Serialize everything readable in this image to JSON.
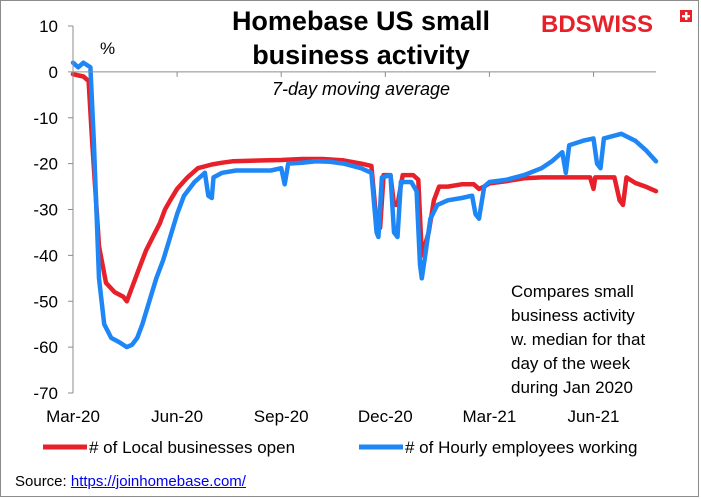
{
  "chart_data": {
    "type": "line",
    "title_lines": [
      "Homebase US small",
      "business activity"
    ],
    "subtitle": "7-day moving average",
    "unit_label": "%",
    "ylim": [
      -70,
      10
    ],
    "y_ticks": [
      10,
      0,
      -10,
      -20,
      -30,
      -40,
      -50,
      -60,
      -70
    ],
    "y_tick_labels": [
      "10",
      "0",
      "-10",
      "-20",
      "-30",
      "-40",
      "-50",
      "-60",
      "-70"
    ],
    "xlim": [
      0,
      16.8
    ],
    "x_ticks": [
      0,
      3,
      6,
      9,
      12,
      15
    ],
    "x_tick_labels": [
      "Mar-20",
      "Jun-20",
      "Sep-20",
      "Dec-20",
      "Mar-21",
      "Jun-21"
    ],
    "annotation_lines": [
      "Compares small",
      "business activity",
      "w. median for that",
      "day of the week",
      "during  Jan 2020"
    ],
    "series": [
      {
        "name": "# of Local businesses open",
        "color": "#e8202a",
        "points": [
          [
            0,
            -0.5
          ],
          [
            0.3,
            -1
          ],
          [
            0.45,
            -2
          ],
          [
            0.55,
            -15
          ],
          [
            0.75,
            -38
          ],
          [
            0.95,
            -46
          ],
          [
            1.2,
            -48
          ],
          [
            1.45,
            -49
          ],
          [
            1.55,
            -50
          ],
          [
            1.7,
            -47
          ],
          [
            1.9,
            -43
          ],
          [
            2.1,
            -39
          ],
          [
            2.3,
            -36
          ],
          [
            2.5,
            -33
          ],
          [
            2.65,
            -30
          ],
          [
            2.8,
            -28
          ],
          [
            3.0,
            -25.5
          ],
          [
            3.3,
            -23
          ],
          [
            3.6,
            -21
          ],
          [
            4.0,
            -20.2
          ],
          [
            4.3,
            -19.8
          ],
          [
            4.6,
            -19.5
          ],
          [
            5.0,
            -19.4
          ],
          [
            5.5,
            -19.3
          ],
          [
            6.0,
            -19.2
          ],
          [
            6.6,
            -19
          ],
          [
            7.2,
            -19
          ],
          [
            7.8,
            -19.3
          ],
          [
            8.3,
            -20
          ],
          [
            8.6,
            -20.5
          ],
          [
            8.75,
            -33
          ],
          [
            8.85,
            -34
          ],
          [
            8.95,
            -22.5
          ],
          [
            9.15,
            -22.5
          ],
          [
            9.25,
            -29
          ],
          [
            9.35,
            -29
          ],
          [
            9.5,
            -22.5
          ],
          [
            9.8,
            -22.5
          ],
          [
            9.95,
            -23.5
          ],
          [
            10.05,
            -40
          ],
          [
            10.25,
            -35
          ],
          [
            10.4,
            -28
          ],
          [
            10.55,
            -25
          ],
          [
            10.8,
            -25
          ],
          [
            11.2,
            -24.5
          ],
          [
            11.55,
            -24.5
          ],
          [
            11.7,
            -25.5
          ],
          [
            11.85,
            -25
          ],
          [
            12.0,
            -24.3
          ],
          [
            12.5,
            -23.8
          ],
          [
            13.0,
            -23.2
          ],
          [
            13.5,
            -23
          ],
          [
            14.0,
            -23
          ],
          [
            14.5,
            -23
          ],
          [
            14.9,
            -23
          ],
          [
            15.0,
            -25.5
          ],
          [
            15.05,
            -23
          ],
          [
            15.6,
            -23
          ],
          [
            15.75,
            -28
          ],
          [
            15.85,
            -29
          ],
          [
            15.95,
            -23
          ],
          [
            16.2,
            -24.2
          ],
          [
            16.5,
            -25
          ],
          [
            16.8,
            -26
          ]
        ]
      },
      {
        "name": "# of Hourly employees working",
        "color": "#1f87f5",
        "points": [
          [
            0,
            2
          ],
          [
            0.15,
            1
          ],
          [
            0.3,
            2
          ],
          [
            0.4,
            1.5
          ],
          [
            0.5,
            1
          ],
          [
            0.6,
            -15
          ],
          [
            0.75,
            -45
          ],
          [
            0.9,
            -55
          ],
          [
            1.1,
            -58
          ],
          [
            1.35,
            -59
          ],
          [
            1.55,
            -60
          ],
          [
            1.7,
            -59.5
          ],
          [
            1.85,
            -58
          ],
          [
            2.0,
            -55
          ],
          [
            2.2,
            -50
          ],
          [
            2.4,
            -45
          ],
          [
            2.6,
            -41
          ],
          [
            2.8,
            -36
          ],
          [
            3.0,
            -31
          ],
          [
            3.2,
            -27
          ],
          [
            3.5,
            -24
          ],
          [
            3.8,
            -22
          ],
          [
            3.9,
            -27
          ],
          [
            4.0,
            -27.5
          ],
          [
            4.05,
            -23
          ],
          [
            4.3,
            -22
          ],
          [
            4.7,
            -21.5
          ],
          [
            5.2,
            -21.5
          ],
          [
            5.7,
            -21.5
          ],
          [
            6.0,
            -21
          ],
          [
            6.1,
            -24.5
          ],
          [
            6.2,
            -20
          ],
          [
            6.6,
            -19.8
          ],
          [
            7.0,
            -19.5
          ],
          [
            7.4,
            -19.6
          ],
          [
            7.8,
            -20
          ],
          [
            8.3,
            -21
          ],
          [
            8.6,
            -22
          ],
          [
            8.75,
            -35
          ],
          [
            8.8,
            -36
          ],
          [
            8.9,
            -23
          ],
          [
            9.15,
            -22.5
          ],
          [
            9.25,
            -35
          ],
          [
            9.35,
            -36
          ],
          [
            9.45,
            -24
          ],
          [
            9.75,
            -24
          ],
          [
            9.9,
            -26
          ],
          [
            10.0,
            -42
          ],
          [
            10.05,
            -45
          ],
          [
            10.15,
            -40
          ],
          [
            10.3,
            -32
          ],
          [
            10.5,
            -29
          ],
          [
            10.8,
            -28
          ],
          [
            11.2,
            -27.5
          ],
          [
            11.5,
            -27
          ],
          [
            11.6,
            -31
          ],
          [
            11.7,
            -32
          ],
          [
            11.85,
            -25
          ],
          [
            12.0,
            -24
          ],
          [
            12.5,
            -23.5
          ],
          [
            13.0,
            -22.5
          ],
          [
            13.5,
            -21
          ],
          [
            13.8,
            -19.5
          ],
          [
            14.1,
            -17.5
          ],
          [
            14.2,
            -22
          ],
          [
            14.3,
            -16
          ],
          [
            14.7,
            -15
          ],
          [
            15.0,
            -14.5
          ],
          [
            15.1,
            -20
          ],
          [
            15.2,
            -21
          ],
          [
            15.3,
            -14.5
          ],
          [
            15.8,
            -13.5
          ],
          [
            16.2,
            -15
          ],
          [
            16.5,
            -17
          ],
          [
            16.8,
            -19.5
          ]
        ]
      }
    ]
  },
  "brand": {
    "text": "BDSWISS",
    "color": "#e8202a"
  },
  "source": {
    "label": "Source:",
    "link_text": "https://joinhomebase.com/"
  }
}
